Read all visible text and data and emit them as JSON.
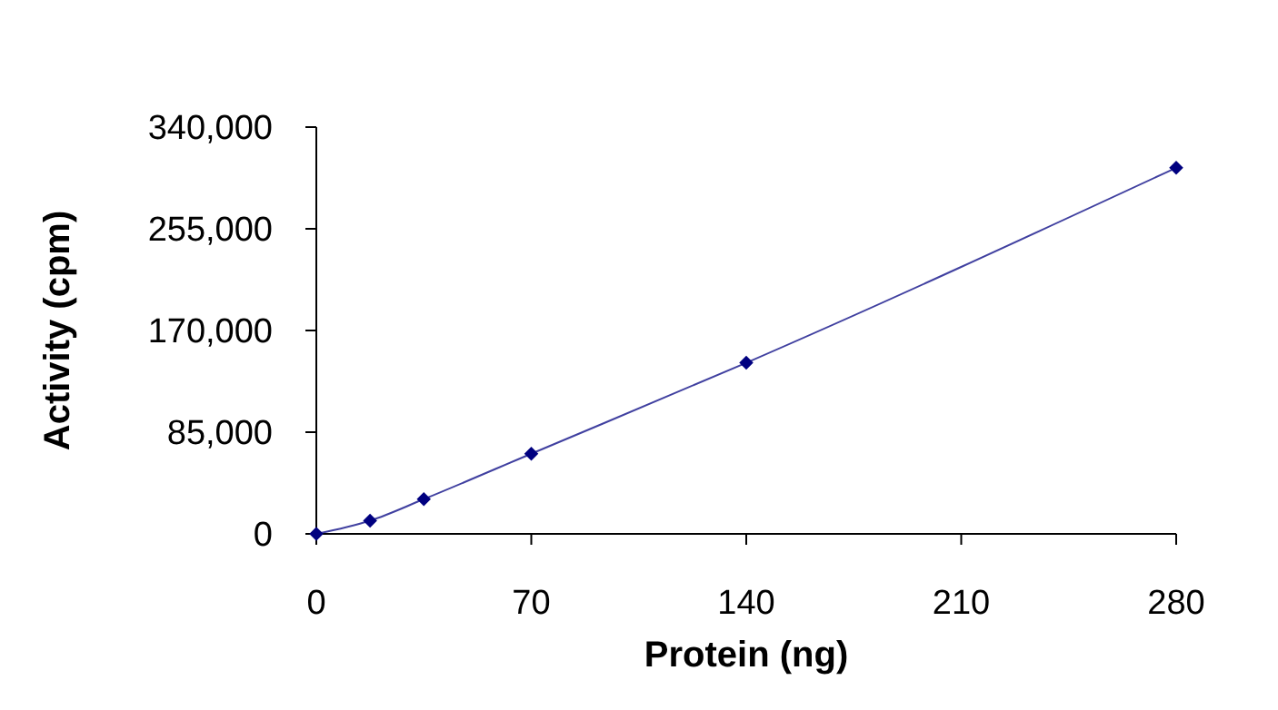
{
  "chart_data": {
    "type": "line",
    "xlabel": "Protein (ng)",
    "ylabel": "Activity (cpm)",
    "x": [
      0,
      17.5,
      35,
      70,
      140,
      280
    ],
    "series": [
      {
        "color": "#000080",
        "values": [
          0,
          11000,
          29000,
          67000,
          143000,
          306000
        ]
      }
    ],
    "xlim": [
      0,
      280
    ],
    "xticks": [
      0,
      70,
      140,
      210,
      280
    ],
    "ylim": [
      0,
      340000
    ],
    "yticks": [
      {
        "value": 0,
        "label": "0"
      },
      {
        "value": 85000,
        "label": "85,000"
      },
      {
        "value": 170000,
        "label": "170,000"
      },
      {
        "value": 255000,
        "label": "255,000"
      },
      {
        "value": 340000,
        "label": "340,000"
      }
    ],
    "grid": false,
    "marker": "diamond",
    "line_style": "solid"
  }
}
